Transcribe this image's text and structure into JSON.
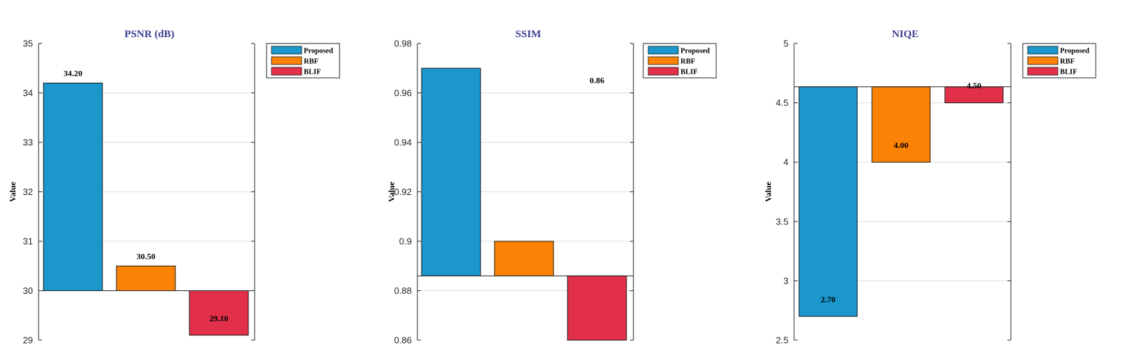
{
  "title_color": "#3b3f8f",
  "chart_data": [
    {
      "type": "bar",
      "title": "PSNR (dB)",
      "ylabel": "Value",
      "xlabel": "",
      "baseline": 30,
      "ylim": [
        29,
        35
      ],
      "yticks": [
        29,
        30,
        31,
        32,
        33,
        34,
        35
      ],
      "ytick_labels": [
        "29",
        "30",
        "31",
        "32",
        "33",
        "34",
        "35"
      ],
      "grid": true,
      "legend_position": "top-right",
      "series": [
        {
          "name": "Proposed",
          "color": "#1b97cc",
          "value": 34.2,
          "label": "34.20"
        },
        {
          "name": "RBF",
          "color": "#fb8204",
          "value": 30.5,
          "label": "30.50"
        },
        {
          "name": "BLIF",
          "color": "#e2304a",
          "value": 29.1,
          "label": "29.10"
        }
      ]
    },
    {
      "type": "bar",
      "title": "SSIM",
      "ylabel": "Value",
      "xlabel": "",
      "baseline": 0.886,
      "ylim": [
        0.86,
        0.98
      ],
      "yticks": [
        0.86,
        0.88,
        0.9,
        0.92,
        0.94,
        0.96,
        0.98
      ],
      "ytick_labels": [
        "0.86",
        "0.88",
        "0.9",
        "0.92",
        "0.94",
        "0.96",
        "0.98"
      ],
      "grid": true,
      "legend_position": "top-right",
      "series": [
        {
          "name": "Proposed",
          "color": "#1b97cc",
          "value": 0.97,
          "label": ""
        },
        {
          "name": "RBF",
          "color": "#fb8204",
          "value": 0.9,
          "label": ""
        },
        {
          "name": "BLIF",
          "color": "#e2304a",
          "value": 0.86,
          "label": "0.86"
        }
      ]
    },
    {
      "type": "bar",
      "title": "NIQE",
      "ylabel": "Value",
      "xlabel": "",
      "baseline": 4.635,
      "ylim": [
        2.5,
        5
      ],
      "yticks": [
        2.5,
        3,
        3.5,
        4,
        4.5,
        5
      ],
      "ytick_labels": [
        "2.5",
        "3",
        "3.5",
        "4",
        "4.5",
        "5"
      ],
      "grid": true,
      "legend_position": "top-right",
      "series": [
        {
          "name": "Proposed",
          "color": "#1b97cc",
          "value": 2.7,
          "label": "2.70"
        },
        {
          "name": "RBF",
          "color": "#fb8204",
          "value": 4.0,
          "label": "4.00"
        },
        {
          "name": "BLIF",
          "color": "#e2304a",
          "value": 4.5,
          "label": "4.50"
        }
      ]
    }
  ]
}
